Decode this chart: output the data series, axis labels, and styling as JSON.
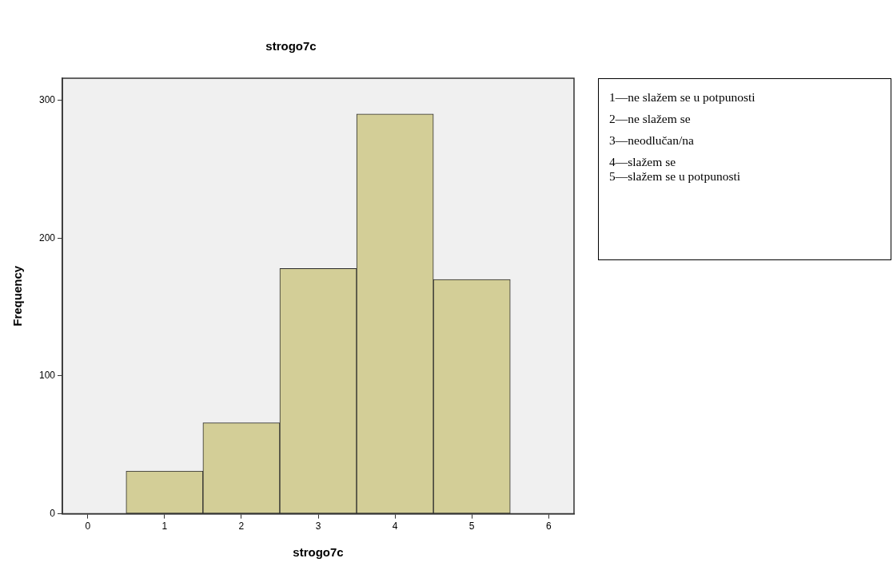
{
  "chart_data": {
    "type": "histogram",
    "title": "strogo7c",
    "xlabel": "strogo7c",
    "ylabel": "Frequency",
    "bins": [
      0.5,
      1.5,
      2.5,
      3.5,
      4.5,
      5.5
    ],
    "values": [
      31,
      66,
      178,
      290,
      170
    ],
    "color": "#d3ce97",
    "xlim": [
      -0.33,
      6.33
    ],
    "xticks": [
      0,
      1,
      2,
      3,
      4,
      5,
      6
    ],
    "ylim": [
      0,
      316
    ],
    "yticks": [
      0,
      100,
      200,
      300
    ],
    "annotations": [
      "1—ne slažem se u potpunosti",
      "2—ne slažem se",
      "3—neodlučan/na",
      "4—slažem se",
      "5—slažem se u potpunosti"
    ]
  }
}
